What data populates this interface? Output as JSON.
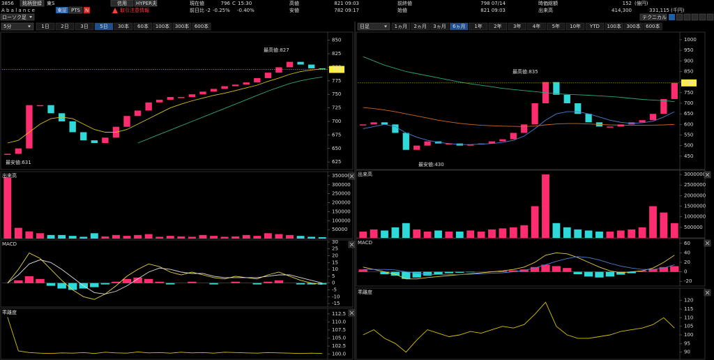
{
  "header": {
    "code": "3856",
    "register": "銘柄登録",
    "market": "東S",
    "name": "A b a l a n c e",
    "exchange": "東証",
    "pts": "PTS",
    "news": "N",
    "margin": "信用",
    "hyper": "HYPER夫",
    "warning": "取引注意情報",
    "chart_style": "ローソク足",
    "technical": "テクニカル",
    "quote": {
      "price_label": "現在値",
      "price": "796",
      "status": "C",
      "time": "15:30",
      "change_label": "前日比",
      "change": "-2",
      "change_pct": "-0.25%",
      "change_pct2": "-0.40%",
      "high_label": "高値",
      "high": "821 09:03",
      "low_label": "安値",
      "low": "782 09:17",
      "prev_close_label": "前終値",
      "prev_close": "798 07/14",
      "open_label": "始値",
      "open": "821 09:03",
      "mcap_label": "時価総額",
      "mcap": "152",
      "mcap_unit": "(億円)",
      "volume_label": "出来高",
      "volume": "414,300",
      "turnover": "331,115",
      "turnover_unit": "(千円)"
    }
  },
  "left": {
    "toolbar": {
      "interval": "5分",
      "ranges": [
        "1日",
        "2日",
        "3日",
        "5日",
        "30本",
        "60本",
        "100本",
        "300本",
        "600本"
      ],
      "active": 3
    },
    "price": {
      "label_high": "最高値:827",
      "label_low": "最安値:631",
      "last": 796,
      "ylim": [
        611,
        865
      ],
      "yticks": [
        850,
        825,
        800,
        775,
        750,
        725,
        700,
        675,
        650,
        625
      ],
      "closes": [
        640,
        650,
        730,
        730,
        715,
        700,
        680,
        665,
        660,
        670,
        690,
        710,
        720,
        735,
        740,
        745,
        745,
        750,
        755,
        760,
        765,
        768,
        772,
        780,
        790,
        800,
        810,
        805,
        798,
        796
      ],
      "series": [
        {
          "color": "#d9c400",
          "values": [
            660,
            665,
            680,
            695,
            705,
            708,
            705,
            695,
            685,
            680,
            680,
            685,
            695,
            705,
            715,
            725,
            732,
            738,
            743,
            748,
            752,
            757,
            762,
            767,
            774,
            780,
            787,
            792,
            795,
            797
          ]
        },
        {
          "color": "#2aa87a",
          "values": [
            null,
            null,
            null,
            null,
            null,
            null,
            null,
            null,
            null,
            null,
            null,
            null,
            660,
            668,
            676,
            684,
            692,
            700,
            708,
            716,
            724,
            732,
            740,
            748,
            756,
            763,
            770,
            775,
            779,
            782
          ]
        }
      ]
    },
    "volume": {
      "label": "出来高",
      "ylim": [
        0,
        373000
      ],
      "yticks": [
        350000,
        300000,
        250000,
        200000,
        150000,
        100000,
        50000
      ],
      "values": [
        340000,
        60000,
        40000,
        30000,
        20000,
        20000,
        15000,
        10000,
        30000,
        12000,
        20000,
        15000,
        20000,
        25000,
        10000,
        15000,
        12000,
        10000,
        20000,
        15000,
        10000,
        12000,
        20000,
        15000,
        30000,
        25000,
        20000,
        15000,
        10000,
        8000
      ]
    },
    "macd": {
      "label": "MACD",
      "ylim": [
        -17.5,
        31.5
      ],
      "yticks": [
        30,
        25,
        20,
        15,
        10,
        5,
        0,
        -5,
        -10,
        -15
      ],
      "histogram": [
        0,
        2,
        5,
        3,
        -2,
        -4,
        -5,
        -4,
        -3,
        -1,
        1,
        3,
        4,
        3,
        1,
        -1,
        0,
        1,
        0,
        -1,
        0,
        1,
        0,
        -1,
        1,
        2,
        0,
        -1,
        -1,
        -1
      ],
      "series": [
        {
          "color": "#e8d23a",
          "values": [
            0,
            10,
            22,
            18,
            10,
            2,
            -5,
            -10,
            -12,
            -8,
            -2,
            5,
            10,
            14,
            12,
            8,
            6,
            8,
            6,
            4,
            3,
            5,
            4,
            3,
            6,
            8,
            5,
            2,
            0,
            -1
          ]
        },
        {
          "color": "#dddddd",
          "values": [
            0,
            6,
            14,
            17,
            15,
            10,
            4,
            -2,
            -7,
            -8,
            -6,
            -2,
            3,
            8,
            11,
            10,
            8,
            7,
            7,
            5,
            4,
            4,
            4,
            4,
            5,
            6,
            6,
            4,
            2,
            0
          ]
        }
      ]
    },
    "deviation": {
      "label": "乖離度",
      "ylim": [
        98.4,
        114.2
      ],
      "yticks": [
        112.5,
        {
          "value": 110,
          "label": "110.0"
        },
        107.5,
        {
          "value": 105,
          "label": "105.0"
        },
        102.5,
        {
          "value": 100,
          "label": "100.0"
        }
      ],
      "series": [
        {
          "color": "#d9c400",
          "values": [
            111.5,
            101,
            100.5,
            100.3,
            100.2,
            100.4,
            100.3,
            100.5,
            100.2,
            100.6,
            100.4,
            100.3,
            100.7,
            100.4,
            100.5,
            100.3,
            100.6,
            100.4,
            100.5,
            100.3,
            100.6,
            100.5,
            100.4,
            100.3,
            100.5,
            100.4,
            100.3,
            100.2,
            100.3,
            100.2
          ]
        }
      ]
    }
  },
  "right": {
    "toolbar": {
      "interval": "日足",
      "ranges": [
        "1ヵ月",
        "2ヵ月",
        "3ヵ月",
        "6ヵ月",
        "1年",
        "2年",
        "3年",
        "4年",
        "5年",
        "10年",
        "YTD",
        "100本",
        "300本",
        "600本"
      ],
      "active": 3
    },
    "price": {
      "label_high": "最高値:835",
      "label_low": "最安値:430",
      "last": 796,
      "ylim": [
        387,
        1036
      ],
      "yticks": [
        1000,
        950,
        900,
        850,
        800,
        750,
        700,
        650,
        600,
        550,
        500,
        450
      ],
      "closes": [
        600,
        610,
        600,
        560,
        480,
        500,
        520,
        510,
        510,
        500,
        505,
        510,
        520,
        530,
        560,
        600,
        700,
        800,
        740,
        700,
        650,
        610,
        590,
        590,
        600,
        610,
        620,
        650,
        720,
        796
      ],
      "series": [
        {
          "color": "#2aa87a",
          "values": [
            920,
            900,
            880,
            865,
            850,
            840,
            830,
            820,
            810,
            800,
            792,
            785,
            778,
            770,
            765,
            760,
            755,
            750,
            745,
            742,
            740,
            738,
            735,
            732,
            728,
            723,
            718,
            715,
            712,
            708
          ]
        },
        {
          "color": "#d2691e",
          "values": [
            680,
            675,
            668,
            660,
            650,
            640,
            630,
            620,
            612,
            605,
            600,
            596,
            594,
            592,
            591,
            590,
            592,
            598,
            602,
            604,
            604,
            602,
            600,
            598,
            597,
            596,
            596,
            597,
            598,
            600
          ]
        },
        {
          "color": "#4a7fd4",
          "values": [
            580,
            590,
            600,
            590,
            560,
            540,
            525,
            515,
            510,
            505,
            505,
            507,
            510,
            515,
            525,
            545,
            580,
            620,
            650,
            660,
            660,
            650,
            635,
            620,
            610,
            605,
            608,
            615,
            635,
            660
          ]
        }
      ]
    },
    "volume": {
      "label": "出来高",
      "ylim": [
        0,
        3200000
      ],
      "yticks": [
        3000000,
        2500000,
        2000000,
        1500000,
        1000000,
        500000
      ],
      "values": [
        300000,
        400000,
        350000,
        500000,
        700000,
        400000,
        300000,
        350000,
        300000,
        300000,
        350000,
        300000,
        400000,
        450000,
        500000,
        600000,
        1500000,
        3000000,
        700000,
        500000,
        400000,
        350000,
        300000,
        300000,
        350000,
        400000,
        500000,
        1500000,
        1200000,
        700000
      ]
    },
    "macd": {
      "label": "MACD",
      "ylim": [
        -30,
        70
      ],
      "yticks": [
        60,
        40,
        20,
        0,
        -20
      ],
      "histogram": [
        5,
        0,
        -5,
        -8,
        -15,
        -12,
        -8,
        -5,
        -3,
        -2,
        -1,
        0,
        1,
        2,
        3,
        5,
        10,
        15,
        12,
        8,
        -5,
        -10,
        -12,
        -10,
        -6,
        -3,
        2,
        6,
        10,
        12
      ],
      "series": [
        {
          "color": "#e8d23a",
          "values": [
            10,
            5,
            0,
            -5,
            -15,
            -15,
            -12,
            -10,
            -8,
            -6,
            -4,
            -2,
            0,
            2,
            5,
            10,
            20,
            35,
            40,
            38,
            30,
            20,
            10,
            2,
            -2,
            0,
            2,
            8,
            20,
            35
          ]
        },
        {
          "color": "#4a7fd4",
          "values": [
            5,
            5,
            5,
            4,
            0,
            -3,
            -5,
            -6,
            -6,
            -6,
            -5,
            -4,
            -3,
            -2,
            0,
            3,
            8,
            15,
            22,
            28,
            32,
            30,
            25,
            18,
            12,
            8,
            5,
            5,
            8,
            15
          ]
        }
      ]
    },
    "deviation": {
      "label": "乖離度",
      "ylim": [
        85.8,
        127.2
      ],
      "yticks": [
        120,
        115,
        110,
        105,
        100,
        95,
        90
      ],
      "series": [
        {
          "color": "#d9c400",
          "values": [
            100,
            103,
            98,
            95,
            90,
            97,
            103,
            101,
            99,
            100,
            102,
            101,
            103,
            105,
            104,
            106,
            112,
            119,
            105,
            100,
            98,
            98,
            99,
            100,
            102,
            103,
            104,
            106,
            110,
            104
          ]
        }
      ]
    }
  }
}
